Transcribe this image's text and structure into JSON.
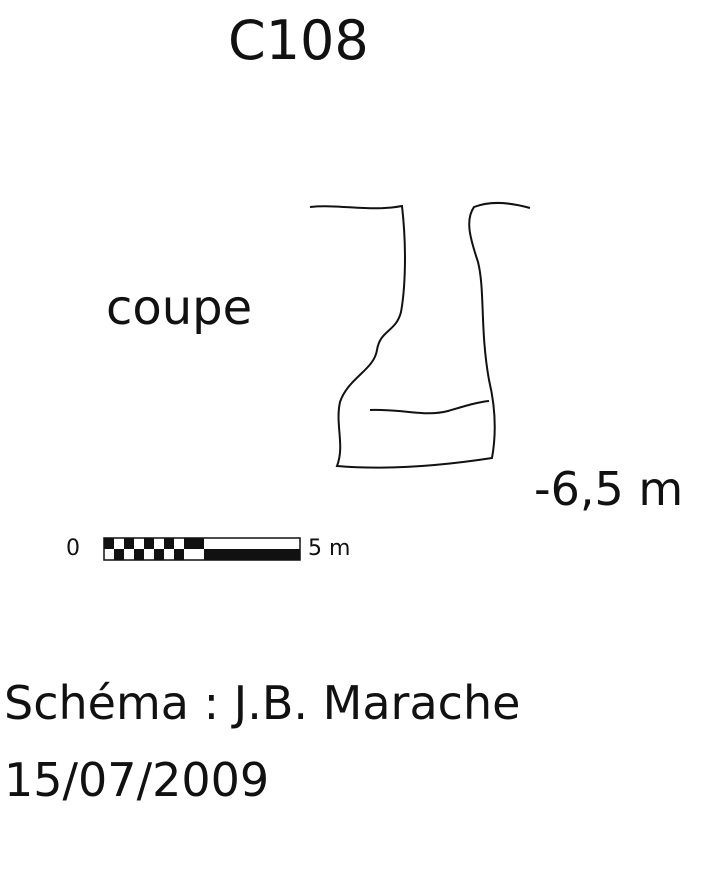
{
  "title": "C108",
  "view_label": "coupe",
  "depth_label": "-6,5 m",
  "scale": {
    "start_label": "0",
    "end_label": "5 m",
    "segments": 5
  },
  "credit": "Schéma : J.B. Marache",
  "date": "15/07/2009",
  "colors": {
    "ink": "#111111",
    "background": "#ffffff"
  }
}
